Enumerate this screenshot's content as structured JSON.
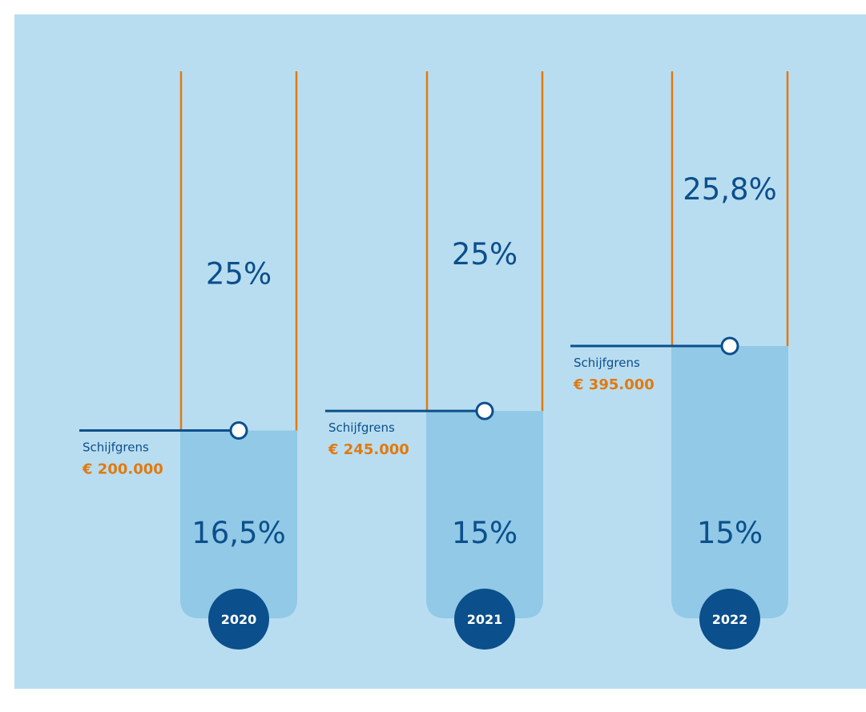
{
  "colors": {
    "background": "#b9ddf0",
    "tube_fill": "#91c9e6",
    "tube_stroke": "#e07a10",
    "text_dark_blue": "#0b4f8c",
    "amount_orange": "#e07a10",
    "year_circle": "#0b4f8c"
  },
  "chart_data": {
    "type": "bar",
    "categories": [
      "2020",
      "2021",
      "2022"
    ],
    "bracket_label": "Schijfgrens",
    "items": [
      {
        "year": "2020",
        "threshold": 200000,
        "threshold_label": "€ 200.000",
        "low_rate": "16,5%",
        "high_rate": "25%"
      },
      {
        "year": "2021",
        "threshold": 245000,
        "threshold_label": "€ 245.000",
        "low_rate": "15%",
        "high_rate": "25%"
      },
      {
        "year": "2022",
        "threshold": 395000,
        "threshold_label": "€ 395.000",
        "low_rate": "15%",
        "high_rate": "25,8%"
      }
    ]
  }
}
